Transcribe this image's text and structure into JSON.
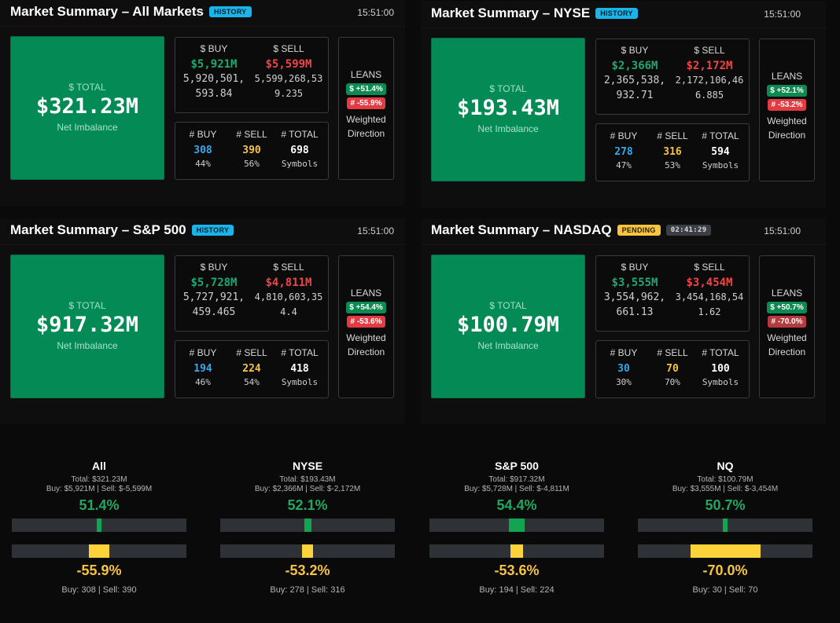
{
  "panels": [
    {
      "title": "Market Summary – All Markets",
      "badge": "HISTORY",
      "time": "15:51:00",
      "total_label": "$ TOTAL",
      "total_value": "$321.23M",
      "total_sub": "Net Imbalance",
      "buy_label": "$ BUY",
      "sell_label": "$ SELL",
      "buy_short": "$5,921M",
      "sell_short": "$5,599M",
      "buy_raw_1": "5,920,501,",
      "buy_raw_2": "593.84",
      "sell_raw_1": "5,599,268,53",
      "sell_raw_2": "9.235",
      "cnt_buy_label": "# BUY",
      "cnt_sell_label": "# SELL",
      "cnt_total_label": "# TOTAL",
      "cnt_buy": "308",
      "cnt_sell": "390",
      "cnt_total": "698",
      "cnt_buy_pct": "44%",
      "cnt_sell_pct": "56%",
      "cnt_total_sub": "Symbols",
      "leans": "LEANS",
      "lean_dollar": "$ +51.4%",
      "lean_count": "# -55.9%",
      "weighted_1": "Weighted",
      "weighted_2": "Direction"
    },
    {
      "title": "Market Summary – NYSE",
      "badge": "HISTORY",
      "time": "15:51:00",
      "total_label": "$ TOTAL",
      "total_value": "$193.43M",
      "total_sub": "Net Imbalance",
      "buy_label": "$ BUY",
      "sell_label": "$ SELL",
      "buy_short": "$2,366M",
      "sell_short": "$2,172M",
      "buy_raw_1": "2,365,538,",
      "buy_raw_2": "932.71",
      "sell_raw_1": "2,172,106,46",
      "sell_raw_2": "6.885",
      "cnt_buy_label": "# BUY",
      "cnt_sell_label": "# SELL",
      "cnt_total_label": "# TOTAL",
      "cnt_buy": "278",
      "cnt_sell": "316",
      "cnt_total": "594",
      "cnt_buy_pct": "47%",
      "cnt_sell_pct": "53%",
      "cnt_total_sub": "Symbols",
      "leans": "LEANS",
      "lean_dollar": "$ +52.1%",
      "lean_count": "# -53.2%",
      "weighted_1": "Weighted",
      "weighted_2": "Direction"
    },
    {
      "title": "Market Summary – S&P 500",
      "badge": "HISTORY",
      "time": "15:51:00",
      "total_label": "$ TOTAL",
      "total_value": "$917.32M",
      "total_sub": "Net Imbalance",
      "buy_label": "$ BUY",
      "sell_label": "$ SELL",
      "buy_short": "$5,728M",
      "sell_short": "$4,811M",
      "buy_raw_1": "5,727,921,",
      "buy_raw_2": "459.465",
      "sell_raw_1": "4,810,603,35",
      "sell_raw_2": "4.4",
      "cnt_buy_label": "# BUY",
      "cnt_sell_label": "# SELL",
      "cnt_total_label": "# TOTAL",
      "cnt_buy": "194",
      "cnt_sell": "224",
      "cnt_total": "418",
      "cnt_buy_pct": "46%",
      "cnt_sell_pct": "54%",
      "cnt_total_sub": "Symbols",
      "leans": "LEANS",
      "lean_dollar": "$ +54.4%",
      "lean_count": "# -53.6%",
      "weighted_1": "Weighted",
      "weighted_2": "Direction"
    },
    {
      "title": "Market Summary – NASDAQ",
      "badge": "PENDING",
      "timer": "02:41:29",
      "time": "15:51:00",
      "total_label": "$ TOTAL",
      "total_value": "$100.79M",
      "total_sub": "Net Imbalance",
      "buy_label": "$ BUY",
      "sell_label": "$ SELL",
      "buy_short": "$3,555M",
      "sell_short": "$3,454M",
      "buy_raw_1": "3,554,962,",
      "buy_raw_2": "661.13",
      "sell_raw_1": "3,454,168,54",
      "sell_raw_2": "1.62",
      "cnt_buy_label": "# BUY",
      "cnt_sell_label": "# SELL",
      "cnt_total_label": "# TOTAL",
      "cnt_buy": "30",
      "cnt_sell": "70",
      "cnt_total": "100",
      "cnt_buy_pct": "30%",
      "cnt_sell_pct": "70%",
      "cnt_total_sub": "Symbols",
      "leans": "LEANS",
      "lean_dollar": "$ +50.7%",
      "lean_count": "# -70.0%",
      "weighted_1": "Weighted",
      "weighted_2": "Direction"
    }
  ],
  "gauges": [
    {
      "title": "All",
      "total": "Total: $321.23M",
      "buysell": "Buy: $5,921M | Sell: $-5,599M",
      "dollar_pct": "51.4%",
      "dollar_value": 0.514,
      "count_pct": "-55.9%",
      "count_value": -0.559,
      "counts": "Buy: 308 | Sell: 390"
    },
    {
      "title": "NYSE",
      "total": "Total: $193.43M",
      "buysell": "Buy: $2,366M | Sell: $-2,172M",
      "dollar_pct": "52.1%",
      "dollar_value": 0.521,
      "count_pct": "-53.2%",
      "count_value": -0.532,
      "counts": "Buy: 278 | Sell: 316"
    },
    {
      "title": "S&P 500",
      "total": "Total: $917.32M",
      "buysell": "Buy: $5,728M | Sell: $-4,811M",
      "dollar_pct": "54.4%",
      "dollar_value": 0.544,
      "count_pct": "-53.6%",
      "count_value": -0.536,
      "counts": "Buy: 194 | Sell: 224"
    },
    {
      "title": "NQ",
      "total": "Total: $100.79M",
      "buysell": "Buy: $3,555M | Sell: $-3,454M",
      "dollar_pct": "50.7%",
      "dollar_value": 0.507,
      "count_pct": "-70.0%",
      "count_value": -0.7,
      "counts": "Buy: 30 | Sell: 70"
    }
  ],
  "colors": {
    "total_bg": "#038a55",
    "buy_green": "#1fa774",
    "sell_red": "#ef4545",
    "count_blue": "#35a8ef",
    "count_yellow": "#f6c440"
  }
}
